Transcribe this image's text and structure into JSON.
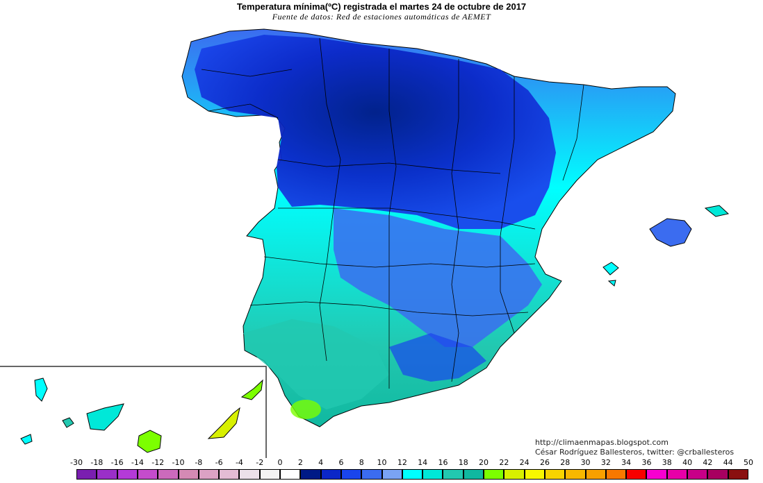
{
  "title": "Temperatura mínima(ºC) registrada el martes 24 de octubre de 2017",
  "subtitle": "Fuente de datos: Red de estaciones automáticas de AEMET",
  "credit": {
    "line1": "http://climaenmapas.blogspot.com",
    "line2": "César Rodríguez Ballesteros, twitter: @crballesteros"
  },
  "legend": {
    "labels": [
      "-30",
      "-18",
      "-16",
      "-14",
      "-12",
      "-10",
      "-8",
      "-6",
      "-4",
      "-2",
      "0",
      "2",
      "4",
      "6",
      "8",
      "10",
      "12",
      "14",
      "16",
      "18",
      "20",
      "22",
      "24",
      "26",
      "28",
      "30",
      "32",
      "34",
      "36",
      "38",
      "40",
      "42",
      "44",
      "50"
    ],
    "colors": [
      "#7a1fb0",
      "#9a2fc8",
      "#b43ad8",
      "#c44ccc",
      "#cc6abc",
      "#d48ab4",
      "#dca2c4",
      "#e4bcd4",
      "#ece0ea",
      "#f4f4f4",
      "#ffffff",
      "#001a86",
      "#0b27c8",
      "#1a45ec",
      "#3b6cf0",
      "#7aa3f4",
      "#00ffff",
      "#00e8d8",
      "#22c8b0",
      "#10b8a0",
      "#7cff00",
      "#d8f000",
      "#f8f800",
      "#f8d400",
      "#f8b800",
      "#f8a000",
      "#f87800",
      "#f80000",
      "#f800d0",
      "#e800a8",
      "#c80088",
      "#a80060",
      "#8a1010"
    ]
  },
  "map": {
    "regions": [
      "Península",
      "Baleares",
      "Canarias"
    ],
    "notes": "Mapa de temperatura mínima"
  }
}
